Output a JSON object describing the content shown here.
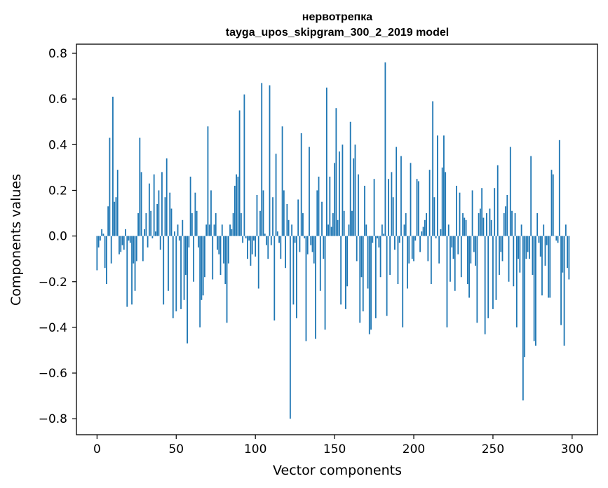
{
  "chart_data": {
    "type": "bar",
    "title_line1": "нервотрепка",
    "title_line2": "tayga_upos_skipgram_300_2_2019 model",
    "xlabel": "Vector components",
    "ylabel": "Components values",
    "xlim": [
      -13,
      316
    ],
    "ylim": [
      -0.87,
      0.84
    ],
    "xticks": [
      0,
      50,
      100,
      150,
      200,
      250,
      300
    ],
    "xtick_labels": [
      "0",
      "50",
      "100",
      "150",
      "200",
      "250",
      "300"
    ],
    "yticks": [
      -0.8,
      -0.6,
      -0.4,
      -0.2,
      0.0,
      0.2,
      0.4,
      0.6,
      0.8
    ],
    "ytick_labels": [
      "−0.8",
      "−0.6",
      "−0.4",
      "−0.2",
      "0.0",
      "0.2",
      "0.4",
      "0.6",
      "0.8"
    ],
    "bar_color": "#1f77b4",
    "grid": false,
    "values": [
      -0.15,
      -0.05,
      -0.02,
      0.03,
      0.01,
      -0.14,
      -0.21,
      0.13,
      0.43,
      -0.12,
      0.61,
      0.15,
      0.17,
      0.29,
      -0.08,
      -0.07,
      -0.04,
      -0.06,
      0.03,
      -0.31,
      -0.02,
      -0.03,
      -0.3,
      -0.12,
      -0.24,
      -0.11,
      0.1,
      0.43,
      0.28,
      -0.11,
      0.03,
      0.1,
      -0.05,
      0.23,
      0.11,
      -0.01,
      0.27,
      0.02,
      0.14,
      0.2,
      -0.06,
      0.28,
      -0.3,
      0.17,
      0.34,
      -0.24,
      0.19,
      0.12,
      -0.36,
      0.02,
      -0.33,
      0.05,
      -0.02,
      -0.32,
      0.07,
      -0.28,
      -0.17,
      -0.47,
      -0.05,
      0.26,
      0.1,
      -0.2,
      0.19,
      0.11,
      -0.05,
      -0.4,
      -0.28,
      -0.26,
      -0.18,
      0.05,
      0.48,
      0.05,
      0.2,
      -0.19,
      0.05,
      0.1,
      -0.06,
      -0.08,
      -0.17,
      0.05,
      -0.12,
      -0.21,
      -0.38,
      -0.12,
      0.05,
      0.03,
      0.1,
      0.22,
      0.27,
      0.26,
      0.55,
      0.1,
      -0.03,
      0.62,
      -0.01,
      -0.1,
      -0.02,
      -0.13,
      -0.08,
      -0.02,
      -0.09,
      0.18,
      -0.23,
      0.11,
      0.67,
      0.2,
      0.01,
      -0.04,
      -0.1,
      0.66,
      -0.04,
      0.17,
      -0.37,
      0.36,
      0.02,
      -0.03,
      -0.1,
      0.48,
      0.2,
      -0.14,
      0.14,
      0.07,
      -0.8,
      0.05,
      -0.3,
      -0.03,
      -0.36,
      0.16,
      -0.07,
      0.45,
      0.1,
      -0.01,
      -0.46,
      -0.08,
      0.39,
      -0.04,
      -0.07,
      -0.12,
      -0.45,
      0.2,
      0.26,
      -0.24,
      0.15,
      -0.1,
      -0.41,
      0.65,
      0.05,
      0.26,
      0.04,
      0.1,
      0.32,
      0.56,
      0.07,
      0.37,
      -0.3,
      0.4,
      0.11,
      -0.32,
      -0.22,
      0.05,
      0.5,
      0.11,
      0.34,
      0.4,
      -0.11,
      0.27,
      -0.38,
      -0.18,
      -0.33,
      0.22,
      0.05,
      -0.23,
      -0.43,
      -0.41,
      -0.03,
      0.25,
      -0.36,
      -0.01,
      -0.05,
      -0.18,
      0.05,
      0.01,
      0.76,
      -0.35,
      0.25,
      -0.17,
      0.28,
      0.17,
      -0.06,
      0.39,
      -0.21,
      -0.03,
      0.35,
      -0.4,
      0.05,
      0.1,
      -0.23,
      -0.12,
      0.32,
      -0.1,
      -0.11,
      -0.02,
      0.25,
      0.24,
      -0.07,
      0.02,
      0.04,
      0.07,
      0.1,
      -0.11,
      0.29,
      -0.21,
      0.59,
      0.17,
      -0.01,
      0.44,
      -0.12,
      0.03,
      0.3,
      0.44,
      0.28,
      -0.4,
      0.05,
      -0.2,
      -0.05,
      -0.1,
      -0.24,
      0.22,
      -0.08,
      0.19,
      -0.18,
      0.1,
      0.08,
      0.07,
      -0.21,
      -0.27,
      -0.12,
      0.2,
      -0.07,
      -0.13,
      -0.38,
      0.1,
      0.12,
      0.21,
      0.08,
      -0.43,
      0.1,
      -0.36,
      0.12,
      0.07,
      -0.32,
      0.21,
      -0.28,
      0.31,
      -0.17,
      -0.07,
      -0.11,
      0.1,
      0.13,
      0.18,
      -0.2,
      0.39,
      0.11,
      -0.22,
      0.1,
      -0.4,
      -0.1,
      -0.16,
      0.05,
      -0.72,
      -0.53,
      -0.1,
      -0.07,
      -0.1,
      0.35,
      -0.17,
      -0.46,
      -0.48,
      0.1,
      -0.03,
      -0.09,
      -0.26,
      0.05,
      -0.13,
      -0.04,
      -0.27,
      -0.27,
      0.29,
      0.27,
      0.0,
      -0.02,
      -0.03,
      0.42,
      -0.39,
      -0.16,
      -0.48,
      0.05,
      -0.14,
      -0.19
    ]
  }
}
